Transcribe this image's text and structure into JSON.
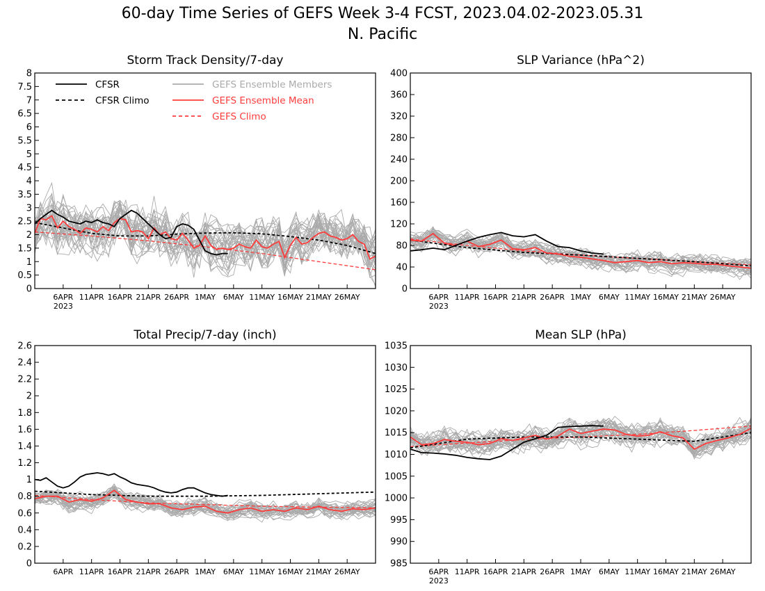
{
  "figure": {
    "title_line1": "60-day Time Series of GEFS Week 3-4 FCST, 2023.04.02-2023.05.31",
    "title_line2": "N. Pacific"
  },
  "colors": {
    "cfsr": "#000000",
    "ensemble_members": "#aaaaaa",
    "ensemble_mean": "#ff3c3c"
  },
  "legend": {
    "cfsr": "CFSR",
    "cfsr_climo": "CFSR Climo",
    "members": "GEFS Ensemble Members",
    "mean": "GEFS Ensemble Mean",
    "gefs_climo": "GEFS Climo"
  },
  "x_axis": {
    "ticks": [
      {
        "label": "6APR",
        "day": 5
      },
      {
        "label": "11APR",
        "day": 10
      },
      {
        "label": "16APR",
        "day": 15
      },
      {
        "label": "21APR",
        "day": 20
      },
      {
        "label": "26APR",
        "day": 25
      },
      {
        "label": "1MAY",
        "day": 30
      },
      {
        "label": "6MAY",
        "day": 35
      },
      {
        "label": "11MAY",
        "day": 40
      },
      {
        "label": "16MAY",
        "day": 45
      },
      {
        "label": "21MAY",
        "day": 50
      },
      {
        "label": "26MAY",
        "day": 55
      }
    ],
    "year_label": "2023",
    "days": 60
  },
  "chart_data": [
    {
      "type": "line",
      "title": "Storm Track Density/7-day",
      "ylim": [
        0,
        8
      ],
      "yticks": [
        "0",
        "0.5",
        "1",
        "1.5",
        "2",
        "2.5",
        "3",
        "3.5",
        "4",
        "4.5",
        "5",
        "5.5",
        "6",
        "6.5",
        "7",
        "7.5",
        "8"
      ],
      "legend": true,
      "series": [
        {
          "name": "CFSR",
          "style": "solid-black",
          "days": [
            0,
            1,
            2,
            3,
            4,
            5,
            6,
            7,
            8,
            9,
            10,
            11,
            12,
            13,
            14,
            15,
            16,
            17,
            18,
            19,
            20,
            21,
            22,
            23,
            24,
            25,
            26,
            27,
            28,
            29,
            30,
            31,
            32,
            33,
            34
          ],
          "values": [
            2.4,
            2.6,
            2.75,
            2.9,
            2.75,
            2.65,
            2.5,
            2.45,
            2.4,
            2.5,
            2.45,
            2.55,
            2.45,
            2.4,
            2.3,
            2.6,
            2.75,
            2.9,
            2.8,
            2.6,
            2.4,
            2.2,
            2.0,
            1.85,
            1.9,
            2.3,
            2.4,
            2.35,
            2.2,
            1.8,
            1.4,
            1.3,
            1.25,
            1.3,
            1.3
          ]
        },
        {
          "name": "CFSR Climo",
          "style": "dashed-black",
          "days": [
            0,
            5,
            10,
            15,
            20,
            25,
            30,
            35,
            40,
            45,
            50,
            55,
            60
          ],
          "values": [
            2.45,
            2.25,
            2.05,
            1.95,
            1.95,
            2.02,
            2.06,
            2.07,
            2.03,
            1.93,
            1.8,
            1.6,
            1.3
          ]
        },
        {
          "name": "GEFS Ensemble Mean",
          "style": "solid-red",
          "days": [
            0,
            1,
            2,
            3,
            4,
            5,
            6,
            7,
            8,
            9,
            10,
            11,
            12,
            13,
            14,
            15,
            16,
            17,
            18,
            19,
            20,
            21,
            22,
            23,
            24,
            25,
            26,
            27,
            28,
            29,
            30,
            31,
            32,
            33,
            34,
            35,
            36,
            37,
            38,
            39,
            40,
            41,
            42,
            43,
            44,
            45,
            46,
            47,
            48,
            49,
            50,
            51,
            52,
            53,
            54,
            55,
            56,
            57,
            58,
            59,
            60
          ],
          "values": [
            2.05,
            2.6,
            2.55,
            2.7,
            2.25,
            2.5,
            2.3,
            2.2,
            2.05,
            2.25,
            2.2,
            2.1,
            2.3,
            2.15,
            2.45,
            2.6,
            2.55,
            2.1,
            2.15,
            2.1,
            1.85,
            2.25,
            2.0,
            2.1,
            1.85,
            1.8,
            2.05,
            1.8,
            1.5,
            1.6,
            1.95,
            1.6,
            1.45,
            1.5,
            1.45,
            1.5,
            1.65,
            1.55,
            1.5,
            1.8,
            1.55,
            1.5,
            1.65,
            1.75,
            1.15,
            1.6,
            1.9,
            1.65,
            1.7,
            1.9,
            2.05,
            2.1,
            1.95,
            1.9,
            1.8,
            1.85,
            2.0,
            1.75,
            1.65,
            1.1,
            1.2
          ]
        },
        {
          "name": "GEFS Climo",
          "style": "dashed-red",
          "days": [
            0,
            10,
            20,
            30,
            40,
            50,
            60
          ],
          "values": [
            2.1,
            1.95,
            1.77,
            1.55,
            1.3,
            1.0,
            0.7
          ]
        }
      ],
      "members": {
        "count": 30,
        "center": "GEFS Ensemble Mean",
        "spread": 1.2,
        "seed": 11,
        "clip": [
          0,
          8
        ]
      }
    },
    {
      "type": "line",
      "title": "SLP Variance (hPa^2)",
      "ylim": [
        0,
        400
      ],
      "yticks": [
        "0",
        "40",
        "80",
        "120",
        "160",
        "200",
        "240",
        "280",
        "320",
        "360",
        "400"
      ],
      "legend": false,
      "series": [
        {
          "name": "CFSR",
          "style": "solid-black",
          "days": [
            0,
            2,
            4,
            6,
            8,
            10,
            12,
            14,
            16,
            18,
            20,
            22,
            24,
            26,
            28,
            30,
            32,
            34
          ],
          "values": [
            70,
            72,
            75,
            72,
            80,
            88,
            95,
            100,
            104,
            98,
            96,
            100,
            88,
            78,
            76,
            70,
            66,
            64
          ]
        },
        {
          "name": "CFSR Climo",
          "style": "dashed-black",
          "days": [
            0,
            10,
            20,
            30,
            40,
            50,
            60
          ],
          "values": [
            90,
            76,
            67,
            62,
            56,
            50,
            42
          ]
        },
        {
          "name": "GEFS Ensemble Mean",
          "style": "solid-red",
          "days": [
            0,
            2,
            4,
            6,
            8,
            10,
            12,
            14,
            16,
            18,
            20,
            22,
            24,
            26,
            28,
            30,
            32,
            34,
            36,
            38,
            40,
            42,
            44,
            46,
            48,
            50,
            52,
            54,
            56,
            58,
            60
          ],
          "values": [
            90,
            88,
            102,
            84,
            80,
            88,
            78,
            82,
            90,
            74,
            72,
            76,
            66,
            64,
            60,
            58,
            55,
            52,
            48,
            50,
            52,
            48,
            50,
            46,
            48,
            47,
            45,
            45,
            42,
            40,
            38
          ]
        },
        {
          "name": "GEFS Climo",
          "style": "dashed-red",
          "days": [
            0,
            10,
            20,
            30,
            40,
            50,
            60
          ],
          "values": [
            92,
            80,
            70,
            62,
            56,
            50,
            44
          ]
        }
      ],
      "members": {
        "count": 30,
        "center": "GEFS Ensemble Mean",
        "spread": 22,
        "seed": 29,
        "clip": [
          15,
          200
        ]
      }
    },
    {
      "type": "line",
      "title": "Total Precip/7-day (inch)",
      "ylim": [
        0,
        2.6
      ],
      "yticks": [
        "0",
        "0.2",
        "0.4",
        "0.6",
        "0.8",
        "1",
        "1.2",
        "1.4",
        "1.6",
        "1.8",
        "2",
        "2.2",
        "2.4",
        "2.6"
      ],
      "legend": false,
      "series": [
        {
          "name": "CFSR",
          "style": "solid-black",
          "days": [
            0,
            1,
            2,
            3,
            4,
            5,
            6,
            7,
            8,
            9,
            10,
            11,
            12,
            13,
            14,
            15,
            16,
            17,
            18,
            19,
            20,
            21,
            22,
            23,
            24,
            25,
            26,
            27,
            28,
            29,
            30,
            31,
            32,
            33,
            34
          ],
          "values": [
            1.0,
            0.99,
            1.02,
            0.97,
            0.92,
            0.9,
            0.92,
            0.97,
            1.03,
            1.06,
            1.07,
            1.08,
            1.07,
            1.05,
            1.07,
            1.03,
            1.0,
            0.96,
            0.94,
            0.93,
            0.92,
            0.9,
            0.87,
            0.85,
            0.84,
            0.85,
            0.88,
            0.9,
            0.9,
            0.87,
            0.84,
            0.82,
            0.81,
            0.8,
            0.81
          ]
        },
        {
          "name": "CFSR Climo",
          "style": "dashed-black",
          "days": [
            0,
            10,
            20,
            30,
            40,
            50,
            60
          ],
          "values": [
            0.86,
            0.82,
            0.8,
            0.8,
            0.81,
            0.83,
            0.85
          ]
        },
        {
          "name": "GEFS Ensemble Mean",
          "style": "solid-red",
          "days": [
            0,
            2,
            4,
            6,
            8,
            10,
            12,
            14,
            16,
            18,
            20,
            22,
            24,
            26,
            28,
            30,
            32,
            34,
            36,
            38,
            40,
            42,
            44,
            46,
            48,
            50,
            52,
            54,
            56,
            58,
            60
          ],
          "values": [
            0.77,
            0.8,
            0.8,
            0.73,
            0.76,
            0.74,
            0.78,
            0.87,
            0.76,
            0.73,
            0.71,
            0.71,
            0.66,
            0.64,
            0.67,
            0.68,
            0.62,
            0.6,
            0.64,
            0.66,
            0.62,
            0.64,
            0.62,
            0.66,
            0.64,
            0.68,
            0.64,
            0.62,
            0.65,
            0.64,
            0.66
          ]
        },
        {
          "name": "GEFS Climo",
          "style": "dashed-red",
          "days": [
            0,
            10,
            20,
            30,
            40,
            50,
            60
          ],
          "values": [
            0.81,
            0.76,
            0.72,
            0.7,
            0.68,
            0.67,
            0.66
          ]
        }
      ],
      "members": {
        "count": 30,
        "center": "GEFS Ensemble Mean",
        "spread": 0.13,
        "seed": 47,
        "clip": [
          0.2,
          1.3
        ]
      }
    },
    {
      "type": "line",
      "title": "Mean SLP (hPa)",
      "ylim": [
        985,
        1035
      ],
      "yticks": [
        "985",
        "990",
        "995",
        "1000",
        "1005",
        "1010",
        "1015",
        "1020",
        "1025",
        "1030",
        "1035"
      ],
      "legend": false,
      "series": [
        {
          "name": "CFSR",
          "style": "solid-black",
          "days": [
            0,
            2,
            4,
            6,
            8,
            10,
            12,
            14,
            16,
            18,
            20,
            22,
            24,
            26,
            28,
            30,
            32,
            34
          ],
          "values": [
            1011.2,
            1010.4,
            1010.3,
            1010.1,
            1009.8,
            1009.3,
            1009.0,
            1008.8,
            1009.6,
            1011.2,
            1012.8,
            1013.6,
            1014.4,
            1016.2,
            1016.4,
            1016.5,
            1016.6,
            1016.5
          ]
        },
        {
          "name": "CFSR Climo",
          "style": "dashed-black",
          "days": [
            0,
            10,
            20,
            30,
            40,
            50,
            60
          ],
          "values": [
            1011.5,
            1013.5,
            1014.0,
            1014.0,
            1013.5,
            1013.0,
            1015.0
          ]
        },
        {
          "name": "GEFS Ensemble Mean",
          "style": "solid-red",
          "days": [
            0,
            2,
            4,
            6,
            8,
            10,
            12,
            14,
            16,
            18,
            20,
            22,
            24,
            26,
            28,
            30,
            32,
            34,
            36,
            38,
            40,
            42,
            44,
            46,
            48,
            50,
            52,
            54,
            56,
            58,
            60
          ],
          "values": [
            1014.0,
            1012.2,
            1012.5,
            1013.4,
            1013.0,
            1012.8,
            1012.2,
            1012.5,
            1013.6,
            1013.2,
            1013.8,
            1014.4,
            1013.5,
            1014.2,
            1015.8,
            1014.8,
            1015.3,
            1015.8,
            1015.6,
            1014.6,
            1014.2,
            1014.4,
            1015.2,
            1014.3,
            1013.8,
            1011.2,
            1012.5,
            1013.2,
            1013.8,
            1014.6,
            1016.0
          ]
        },
        {
          "name": "GEFS Climo",
          "style": "dashed-red",
          "days": [
            0,
            10,
            20,
            30,
            40,
            50,
            60
          ],
          "values": [
            1011.8,
            1012.6,
            1013.4,
            1014.0,
            1014.6,
            1015.5,
            1016.5
          ]
        }
      ],
      "members": {
        "count": 30,
        "center": "GEFS Ensemble Mean",
        "spread": 3.6,
        "seed": 83,
        "clip": [
          1001,
          1027
        ]
      }
    }
  ]
}
